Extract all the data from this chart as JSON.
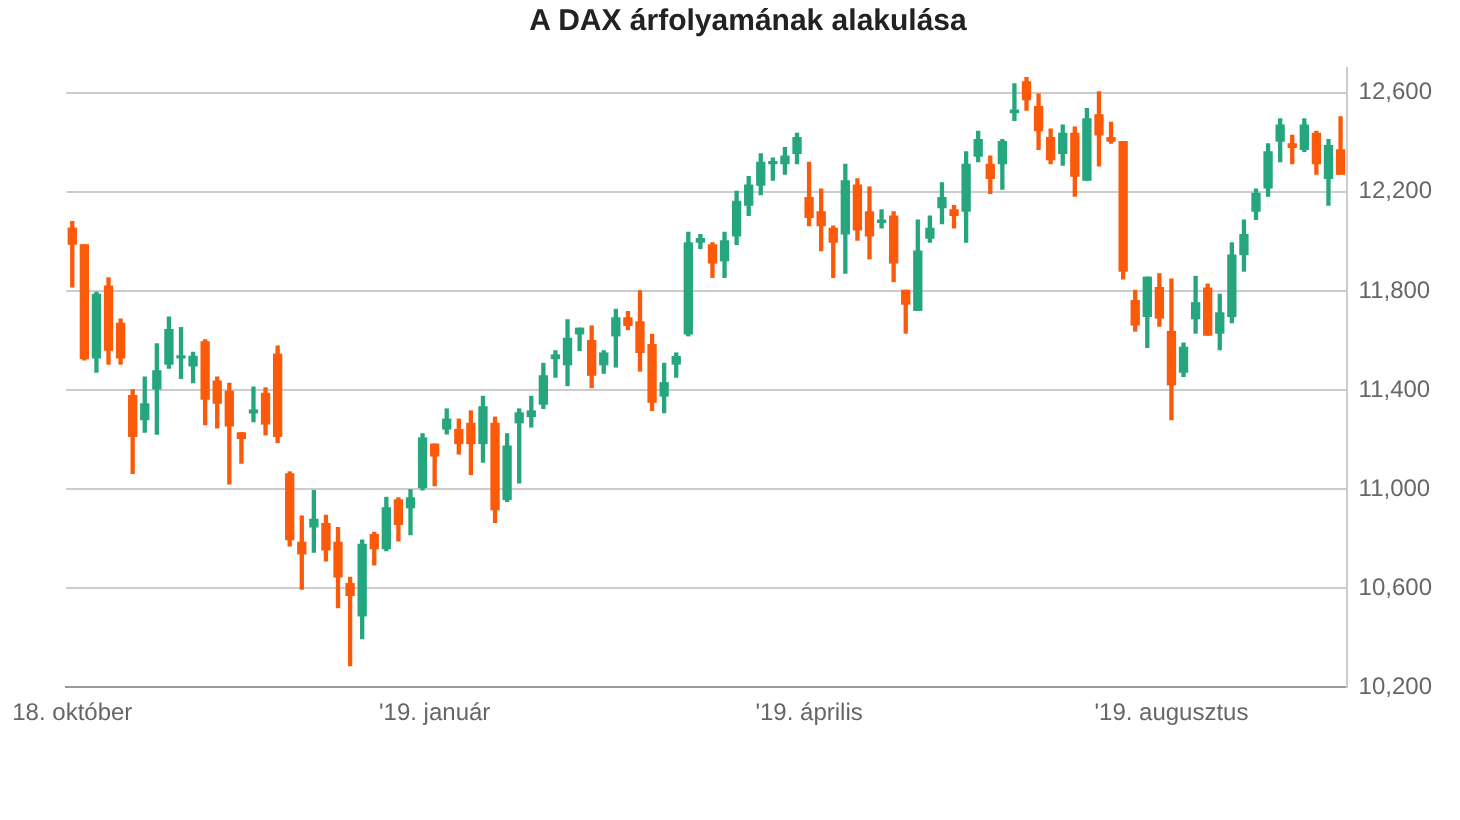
{
  "chart_data": {
    "type": "candlestick",
    "title": "A DAX árfolyamának alakulása",
    "categories": [
      "18. október",
      null,
      null,
      null,
      null,
      null,
      null,
      null,
      null,
      null,
      null,
      null,
      null,
      null,
      null,
      null,
      null,
      null,
      null,
      null,
      null,
      null,
      null,
      null,
      null,
      null,
      null,
      null,
      null,
      null,
      "'19. január",
      null,
      null,
      null,
      null,
      null,
      null,
      null,
      null,
      null,
      null,
      null,
      null,
      null,
      null,
      null,
      null,
      null,
      null,
      null,
      null,
      null,
      null,
      null,
      null,
      null,
      null,
      null,
      null,
      null,
      null,
      "'19. április",
      null,
      null,
      null,
      null,
      null,
      null,
      null,
      null,
      null,
      null,
      null,
      null,
      null,
      null,
      null,
      null,
      null,
      null,
      null,
      null,
      null,
      null,
      null,
      null,
      null,
      null,
      null,
      null,
      null,
      "'19. augusztus",
      null,
      null,
      null,
      null,
      null,
      null,
      null,
      null,
      null,
      null,
      null,
      null,
      null,
      null
    ],
    "ohlc": [
      [
        12053,
        12080,
        11816,
        11989
      ],
      [
        11986,
        11986,
        11522,
        11527
      ],
      [
        11530,
        11794,
        11472,
        11786
      ],
      [
        11819,
        11853,
        11505,
        11561
      ],
      [
        11669,
        11686,
        11505,
        11530
      ],
      [
        11377,
        11400,
        11063,
        11213
      ],
      [
        11280,
        11452,
        11230,
        11344
      ],
      [
        11405,
        11586,
        11222,
        11477
      ],
      [
        11505,
        11694,
        11488,
        11644
      ],
      [
        11530,
        11652,
        11447,
        11536
      ],
      [
        11497,
        11552,
        11430,
        11536
      ],
      [
        11594,
        11602,
        11260,
        11363
      ],
      [
        11436,
        11452,
        11247,
        11347
      ],
      [
        11394,
        11427,
        11021,
        11255
      ],
      [
        11227,
        11227,
        11105,
        11205
      ],
      [
        11308,
        11411,
        11272,
        11319
      ],
      [
        11386,
        11408,
        11219,
        11263
      ],
      [
        11544,
        11577,
        11188,
        11213
      ],
      [
        11061,
        11069,
        10771,
        10796
      ],
      [
        10785,
        10891,
        10596,
        10738
      ],
      [
        10847,
        10994,
        10746,
        10877
      ],
      [
        10860,
        10894,
        10710,
        10755
      ],
      [
        10785,
        10844,
        10521,
        10646
      ],
      [
        10618,
        10643,
        10287,
        10571
      ],
      [
        10488,
        10794,
        10396,
        10777
      ],
      [
        10816,
        10825,
        10694,
        10760
      ],
      [
        10760,
        10966,
        10752,
        10924
      ],
      [
        10956,
        10964,
        10791,
        10858
      ],
      [
        10925,
        10997,
        10816,
        10964
      ],
      [
        11006,
        11223,
        10997,
        11206
      ],
      [
        11181,
        11181,
        11014,
        11134
      ],
      [
        11243,
        11323,
        11223,
        11282
      ],
      [
        11240,
        11282,
        11142,
        11184
      ],
      [
        11265,
        11315,
        11059,
        11184
      ],
      [
        11184,
        11374,
        11109,
        11332
      ],
      [
        11265,
        11290,
        10866,
        10917
      ],
      [
        10958,
        11223,
        10950,
        11173
      ],
      [
        11268,
        11323,
        11025,
        11307
      ],
      [
        11293,
        11374,
        11251,
        11315
      ],
      [
        11343,
        11507,
        11326,
        11457
      ],
      [
        11527,
        11558,
        11452,
        11541
      ],
      [
        11502,
        11683,
        11418,
        11608
      ],
      [
        11627,
        11649,
        11560,
        11649
      ],
      [
        11599,
        11658,
        11410,
        11460
      ],
      [
        11502,
        11558,
        11468,
        11549
      ],
      [
        11619,
        11725,
        11493,
        11691
      ],
      [
        11691,
        11716,
        11644,
        11661
      ],
      [
        11675,
        11800,
        11477,
        11552
      ],
      [
        11583,
        11624,
        11318,
        11351
      ],
      [
        11376,
        11507,
        11309,
        11429
      ],
      [
        11505,
        11549,
        11452,
        11535
      ],
      [
        11627,
        12036,
        11619,
        11994
      ],
      [
        11997,
        12027,
        11972,
        12011
      ],
      [
        11986,
        11994,
        11855,
        11913
      ],
      [
        11922,
        12036,
        11855,
        12002
      ],
      [
        12022,
        12202,
        11988,
        12161
      ],
      [
        12147,
        12261,
        12105,
        12227
      ],
      [
        12227,
        12353,
        12189,
        12319
      ],
      [
        12314,
        12336,
        12247,
        12322
      ],
      [
        12314,
        12378,
        12272,
        12344
      ],
      [
        12355,
        12436,
        12314,
        12419
      ],
      [
        12177,
        12319,
        12064,
        12097
      ],
      [
        12119,
        12211,
        11963,
        12064
      ],
      [
        12052,
        12061,
        11855,
        11997
      ],
      [
        12030,
        12311,
        11872,
        12244
      ],
      [
        12227,
        12252,
        12005,
        12047
      ],
      [
        12119,
        12219,
        11930,
        12022
      ],
      [
        12077,
        12127,
        12055,
        12086
      ],
      [
        12102,
        12119,
        11838,
        11913
      ],
      [
        11802,
        11802,
        11630,
        11747
      ],
      [
        11722,
        12086,
        11722,
        11961
      ],
      [
        12013,
        12102,
        11997,
        12052
      ],
      [
        12136,
        12236,
        12072,
        12177
      ],
      [
        12127,
        12144,
        12055,
        12105
      ],
      [
        12122,
        12361,
        11997,
        12311
      ],
      [
        12344,
        12444,
        12322,
        12411
      ],
      [
        12311,
        12344,
        12194,
        12255
      ],
      [
        12314,
        12411,
        12211,
        12403
      ],
      [
        12520,
        12636,
        12489,
        12530
      ],
      [
        12644,
        12661,
        12530,
        12572
      ],
      [
        12544,
        12594,
        12372,
        12447
      ],
      [
        12419,
        12453,
        12314,
        12330
      ],
      [
        12355,
        12469,
        12308,
        12436
      ],
      [
        12436,
        12461,
        12183,
        12264
      ],
      [
        12247,
        12536,
        12247,
        12494
      ],
      [
        12511,
        12603,
        12305,
        12430
      ],
      [
        12419,
        12480,
        12397,
        12405
      ],
      [
        12403,
        12403,
        11849,
        11880
      ],
      [
        11761,
        11802,
        11638,
        11663
      ],
      [
        11697,
        11855,
        11572,
        11855
      ],
      [
        11813,
        11869,
        11658,
        11691
      ],
      [
        11636,
        11847,
        11280,
        11421
      ],
      [
        11472,
        11589,
        11455,
        11572
      ],
      [
        11688,
        11858,
        11630,
        11752
      ],
      [
        11811,
        11827,
        11622,
        11622
      ],
      [
        11630,
        11786,
        11563,
        11711
      ],
      [
        11697,
        11994,
        11672,
        11944
      ],
      [
        11947,
        12086,
        11880,
        12027
      ],
      [
        12122,
        12211,
        12089,
        12194
      ],
      [
        12216,
        12394,
        12183,
        12361
      ],
      [
        12405,
        12494,
        12322,
        12469
      ],
      [
        12394,
        12428,
        12314,
        12380
      ],
      [
        12372,
        12494,
        12364,
        12469
      ],
      [
        12436,
        12444,
        12272,
        12314
      ],
      [
        12255,
        12411,
        12147,
        12386
      ],
      [
        12369,
        12503,
        12272,
        12272
      ]
    ],
    "colors": [
      "#fa5a0a",
      "#fa5a0a",
      "#26a67e",
      "#fa5a0a",
      "#fa5a0a",
      "#fa5a0a",
      "#26a67e",
      "#26a67e",
      "#26a67e",
      "#26a67e",
      "#26a67e",
      "#fa5a0a",
      "#fa5a0a",
      "#fa5a0a",
      "#fa5a0a",
      "#26a67e",
      "#fa5a0a",
      "#fa5a0a",
      "#fa5a0a",
      "#fa5a0a",
      "#26a67e",
      "#fa5a0a",
      "#fa5a0a",
      "#fa5a0a",
      "#26a67e",
      "#fa5a0a",
      "#26a67e",
      "#fa5a0a",
      "#26a67e",
      "#26a67e",
      "#fa5a0a",
      "#26a67e",
      "#fa5a0a",
      "#fa5a0a",
      "#26a67e",
      "#fa5a0a",
      "#26a67e",
      "#26a67e",
      "#26a67e",
      "#26a67e",
      "#26a67e",
      "#26a67e",
      "#26a67e",
      "#fa5a0a",
      "#26a67e",
      "#26a67e",
      "#fa5a0a",
      "#fa5a0a",
      "#fa5a0a",
      "#26a67e",
      "#26a67e",
      "#26a67e",
      "#26a67e",
      "#fa5a0a",
      "#26a67e",
      "#26a67e",
      "#26a67e",
      "#26a67e",
      "#26a67e",
      "#26a67e",
      "#26a67e",
      "#fa5a0a",
      "#fa5a0a",
      "#fa5a0a",
      "#26a67e",
      "#fa5a0a",
      "#fa5a0a",
      "#26a67e",
      "#fa5a0a",
      "#fa5a0a",
      "#26a67e",
      "#26a67e",
      "#26a67e",
      "#fa5a0a",
      "#26a67e",
      "#26a67e",
      "#fa5a0a",
      "#26a67e",
      "#26a67e",
      "#fa5a0a",
      "#fa5a0a",
      "#fa5a0a",
      "#26a67e",
      "#fa5a0a",
      "#26a67e",
      "#fa5a0a",
      "#fa5a0a",
      "#fa5a0a",
      "#fa5a0a",
      "#26a67e",
      "#fa5a0a",
      "#fa5a0a",
      "#26a67e",
      "#26a67e",
      "#fa5a0a",
      "#26a67e",
      "#26a67e",
      "#26a67e",
      "#26a67e",
      "#26a67e",
      "#26a67e",
      "#fa5a0a",
      "#26a67e",
      "#fa5a0a",
      "#26a67e",
      "#fa5a0a"
    ],
    "ylim": [
      10200,
      12700
    ],
    "yticks": [
      {
        "value": 10200,
        "label": "10,200"
      },
      {
        "value": 10600,
        "label": "10,600"
      },
      {
        "value": 11000,
        "label": "11,000"
      },
      {
        "value": 11400,
        "label": "11,400"
      },
      {
        "value": 11800,
        "label": "11,800"
      },
      {
        "value": 12200,
        "label": "12,200"
      },
      {
        "value": 12600,
        "label": "12,600"
      }
    ],
    "grid": "y"
  }
}
